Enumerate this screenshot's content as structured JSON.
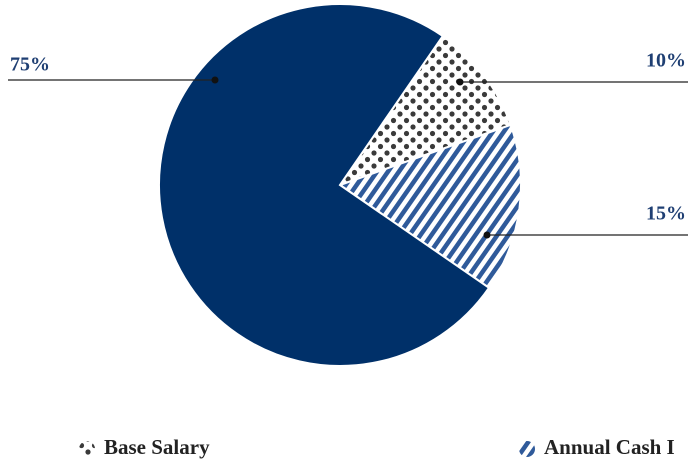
{
  "chart_data": {
    "type": "pie",
    "categories": [
      null,
      "Base Salary",
      "Annual Cash I"
    ],
    "values": [
      75,
      10,
      15
    ],
    "value_labels": [
      "75%",
      "10%",
      "15%"
    ],
    "colors": [
      "#003069",
      "#3a3a3a",
      "#2f5a9a"
    ],
    "patterns": [
      "solid",
      "dots",
      "stripes"
    ]
  }
}
